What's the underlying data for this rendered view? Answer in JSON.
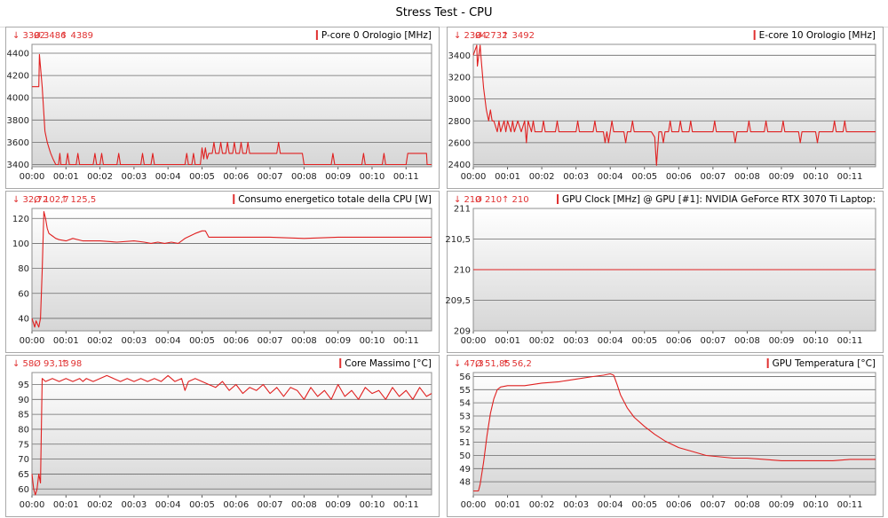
{
  "window": {
    "title": "Stress Test - CPU"
  },
  "theme": {
    "line_color": "#e02020",
    "stat_color": "#e03030"
  },
  "chart_data": [
    {
      "type": "line",
      "title": "P-core 0 Orologio [MHz]",
      "stats": {
        "min": "↓ 3392",
        "avg": "Ø 3486",
        "max": "↑ 4389"
      },
      "ylim": [
        3380,
        4480
      ],
      "yticks": [
        3400,
        3600,
        3800,
        4000,
        4200,
        4400
      ],
      "ytick_labels": [
        "3400",
        "3600",
        "3800",
        "4000",
        "4200",
        "4400"
      ],
      "xlim": [
        0,
        11.75
      ],
      "xticks": [
        0,
        1,
        2,
        3,
        4,
        5,
        6,
        7,
        8,
        9,
        10,
        11
      ],
      "xtick_labels": [
        "00:00",
        "00:01",
        "00:02",
        "00:03",
        "00:04",
        "00:05",
        "00:06",
        "00:07",
        "00:08",
        "00:09",
        "00:10",
        "00:11"
      ],
      "grid": true,
      "x": [
        0.0,
        0.2,
        0.22,
        0.3,
        0.38,
        0.45,
        0.5,
        0.55,
        0.62,
        0.7,
        0.78,
        0.82,
        0.85,
        1.0,
        1.05,
        1.1,
        1.3,
        1.35,
        1.4,
        1.8,
        1.85,
        1.9,
        2.0,
        2.05,
        2.1,
        2.5,
        2.55,
        2.6,
        3.2,
        3.25,
        3.3,
        3.5,
        3.55,
        3.6,
        4.5,
        4.55,
        4.6,
        4.7,
        4.75,
        4.8,
        4.95,
        5.0,
        5.05,
        5.1,
        5.15,
        5.2,
        5.3,
        5.35,
        5.4,
        5.5,
        5.55,
        5.6,
        5.7,
        5.75,
        5.8,
        5.9,
        5.95,
        6.0,
        6.1,
        6.15,
        6.2,
        6.3,
        6.35,
        6.4,
        6.5,
        6.55,
        7.2,
        7.25,
        7.3,
        7.9,
        7.95,
        8.0,
        8.8,
        8.85,
        8.9,
        9.7,
        9.75,
        9.8,
        10.3,
        10.35,
        10.4,
        11.0,
        11.05,
        11.1,
        11.6,
        11.62,
        11.75
      ],
      "y": [
        4100,
        4100,
        4389,
        4100,
        3700,
        3600,
        3550,
        3500,
        3450,
        3400,
        3400,
        3500,
        3400,
        3400,
        3500,
        3400,
        3400,
        3500,
        3400,
        3400,
        3500,
        3400,
        3400,
        3500,
        3400,
        3400,
        3500,
        3400,
        3400,
        3500,
        3400,
        3400,
        3500,
        3400,
        3400,
        3500,
        3400,
        3400,
        3500,
        3400,
        3400,
        3550,
        3450,
        3550,
        3450,
        3500,
        3500,
        3600,
        3500,
        3500,
        3600,
        3500,
        3500,
        3600,
        3500,
        3500,
        3600,
        3500,
        3500,
        3600,
        3500,
        3500,
        3600,
        3500,
        3500,
        3500,
        3500,
        3600,
        3500,
        3500,
        3500,
        3400,
        3400,
        3500,
        3400,
        3400,
        3500,
        3400,
        3400,
        3500,
        3400,
        3400,
        3500,
        3500,
        3500,
        3400,
        3400
      ]
    },
    {
      "type": "line",
      "title": "E-core 10 Orologio [MHz]",
      "stats": {
        "min": "↓ 2394",
        "avg": "Ø 2732",
        "max": "↑ 3492"
      },
      "ylim": [
        2380,
        3500
      ],
      "yticks": [
        2400,
        2600,
        2800,
        3000,
        3200,
        3400
      ],
      "ytick_labels": [
        "2400",
        "2600",
        "2800",
        "3000",
        "3200",
        "3400"
      ],
      "xlim": [
        0,
        11.75
      ],
      "xticks": [
        0,
        1,
        2,
        3,
        4,
        5,
        6,
        7,
        8,
        9,
        10,
        11
      ],
      "xtick_labels": [
        "00:00",
        "00:01",
        "00:02",
        "00:03",
        "00:04",
        "00:05",
        "00:06",
        "00:07",
        "00:08",
        "00:09",
        "00:10",
        "00:11"
      ],
      "grid": true,
      "x": [
        0.0,
        0.1,
        0.12,
        0.2,
        0.22,
        0.3,
        0.38,
        0.45,
        0.5,
        0.55,
        0.6,
        0.7,
        0.75,
        0.8,
        0.9,
        0.95,
        1.0,
        1.1,
        1.15,
        1.2,
        1.3,
        1.4,
        1.5,
        1.55,
        1.6,
        1.7,
        1.75,
        1.8,
        2.0,
        2.05,
        2.1,
        2.4,
        2.45,
        2.5,
        3.0,
        3.05,
        3.1,
        3.5,
        3.55,
        3.6,
        3.8,
        3.85,
        3.9,
        3.95,
        4.0,
        4.05,
        4.1,
        4.4,
        4.45,
        4.5,
        4.6,
        4.65,
        4.7,
        5.2,
        5.3,
        5.35,
        5.42,
        5.5,
        5.55,
        5.6,
        5.7,
        5.75,
        5.8,
        6.0,
        6.05,
        6.1,
        6.3,
        6.35,
        6.4,
        7.0,
        7.05,
        7.1,
        7.6,
        7.65,
        7.7,
        8.0,
        8.05,
        8.1,
        8.5,
        8.55,
        8.6,
        9.0,
        9.05,
        9.1,
        9.5,
        9.55,
        9.6,
        10.0,
        10.05,
        10.1,
        10.5,
        10.55,
        10.6,
        10.8,
        10.85,
        10.9,
        11.75
      ],
      "y": [
        3400,
        3492,
        3300,
        3492,
        3400,
        3100,
        2900,
        2800,
        2900,
        2800,
        2800,
        2700,
        2800,
        2700,
        2800,
        2700,
        2800,
        2700,
        2800,
        2700,
        2800,
        2700,
        2800,
        2600,
        2800,
        2700,
        2800,
        2700,
        2700,
        2800,
        2700,
        2700,
        2800,
        2700,
        2700,
        2800,
        2700,
        2700,
        2800,
        2700,
        2700,
        2600,
        2700,
        2600,
        2700,
        2800,
        2700,
        2700,
        2600,
        2700,
        2700,
        2800,
        2700,
        2700,
        2650,
        2394,
        2700,
        2700,
        2600,
        2700,
        2700,
        2800,
        2700,
        2700,
        2800,
        2700,
        2700,
        2800,
        2700,
        2700,
        2800,
        2700,
        2700,
        2600,
        2700,
        2700,
        2800,
        2700,
        2700,
        2800,
        2700,
        2700,
        2800,
        2700,
        2700,
        2600,
        2700,
        2700,
        2600,
        2700,
        2700,
        2800,
        2700,
        2700,
        2800,
        2700,
        2700
      ]
    },
    {
      "type": "line",
      "title": "Consumo energetico totale della CPU [W]",
      "stats": {
        "min": "↓ 32,72",
        "avg": "Ø 102,7",
        "max": "↑ 125,5"
      },
      "ylim": [
        30,
        128
      ],
      "yticks": [
        40,
        60,
        80,
        100,
        120
      ],
      "ytick_labels": [
        "40",
        "60",
        "80",
        "100",
        "120"
      ],
      "xlim": [
        0,
        11.75
      ],
      "xticks": [
        0,
        1,
        2,
        3,
        4,
        5,
        6,
        7,
        8,
        9,
        10,
        11
      ],
      "xtick_labels": [
        "00:00",
        "00:01",
        "00:02",
        "00:03",
        "00:04",
        "00:05",
        "00:06",
        "00:07",
        "00:08",
        "00:09",
        "00:10",
        "00:11"
      ],
      "grid": true,
      "x": [
        0.0,
        0.08,
        0.12,
        0.2,
        0.25,
        0.3,
        0.35,
        0.4,
        0.45,
        0.5,
        0.6,
        0.7,
        0.8,
        1.0,
        1.2,
        1.5,
        2.0,
        2.5,
        3.0,
        3.3,
        3.5,
        3.7,
        3.9,
        4.1,
        4.3,
        4.5,
        4.8,
        5.0,
        5.1,
        5.2,
        5.3,
        6.0,
        7.0,
        8.0,
        9.0,
        10.0,
        11.0,
        11.75
      ],
      "y": [
        40,
        33,
        38,
        33,
        40,
        78,
        125.5,
        120,
        112,
        108,
        106,
        104,
        103,
        102,
        104,
        102,
        102,
        101,
        102,
        101,
        100,
        101,
        100,
        101,
        100,
        104,
        108,
        110,
        110,
        105,
        105,
        105,
        105,
        104,
        105,
        105,
        105,
        105
      ]
    },
    {
      "type": "line",
      "title": "GPU Clock [MHz] @ GPU [#1]: NVIDIA GeForce RTX 3070 Ti Laptop:",
      "stats": {
        "min": "↓ 210",
        "avg": "Ø 210",
        "max": "↑ 210"
      },
      "ylim": [
        209,
        211
      ],
      "yticks": [
        209,
        209.5,
        210,
        210.5,
        211
      ],
      "ytick_labels": [
        "209",
        "209,5",
        "210",
        "210,5",
        "211"
      ],
      "xlim": [
        0,
        11.75
      ],
      "xticks": [
        0,
        1,
        2,
        3,
        4,
        5,
        6,
        7,
        8,
        9,
        10,
        11
      ],
      "xtick_labels": [
        "00:00",
        "00:01",
        "00:02",
        "00:03",
        "00:04",
        "00:05",
        "00:06",
        "00:07",
        "00:08",
        "00:09",
        "00:10",
        "00:11"
      ],
      "grid": true,
      "x": [
        0.0,
        11.75
      ],
      "y": [
        210,
        210
      ]
    },
    {
      "type": "line",
      "title": "Core Massimo [°C]",
      "stats": {
        "min": "↓ 58",
        "avg": "Ø 93,13",
        "max": "↑ 98"
      },
      "ylim": [
        58,
        99
      ],
      "yticks": [
        60,
        65,
        70,
        75,
        80,
        85,
        90,
        95
      ],
      "ytick_labels": [
        "60",
        "65",
        "70",
        "75",
        "80",
        "85",
        "90",
        "95"
      ],
      "xlim": [
        0,
        11.75
      ],
      "xticks": [
        0,
        1,
        2,
        3,
        4,
        5,
        6,
        7,
        8,
        9,
        10,
        11
      ],
      "xtick_labels": [
        "00:00",
        "00:01",
        "00:02",
        "00:03",
        "00:04",
        "00:05",
        "00:06",
        "00:07",
        "00:08",
        "00:09",
        "00:10",
        "00:11"
      ],
      "grid": true,
      "x": [
        0.0,
        0.05,
        0.1,
        0.15,
        0.2,
        0.25,
        0.3,
        0.4,
        0.6,
        0.8,
        1.0,
        1.2,
        1.4,
        1.5,
        1.6,
        1.8,
        2.0,
        2.2,
        2.4,
        2.6,
        2.8,
        3.0,
        3.2,
        3.4,
        3.6,
        3.8,
        4.0,
        4.2,
        4.4,
        4.5,
        4.6,
        4.8,
        5.0,
        5.2,
        5.4,
        5.6,
        5.8,
        6.0,
        6.2,
        6.4,
        6.6,
        6.8,
        7.0,
        7.2,
        7.4,
        7.6,
        7.8,
        8.0,
        8.2,
        8.4,
        8.6,
        8.8,
        9.0,
        9.2,
        9.4,
        9.6,
        9.8,
        10.0,
        10.2,
        10.4,
        10.6,
        10.8,
        11.0,
        11.2,
        11.4,
        11.6,
        11.75
      ],
      "y": [
        65,
        60,
        58,
        60,
        65,
        62,
        97,
        96,
        97,
        96,
        97,
        96,
        97,
        96,
        97,
        96,
        97,
        98,
        97,
        96,
        97,
        96,
        97,
        96,
        97,
        96,
        98,
        96,
        97,
        93,
        96,
        97,
        96,
        95,
        94,
        96,
        93,
        95,
        92,
        94,
        93,
        95,
        92,
        94,
        91,
        94,
        93,
        90,
        94,
        91,
        93,
        90,
        95,
        91,
        93,
        90,
        94,
        92,
        93,
        90,
        94,
        91,
        93,
        90,
        94,
        91,
        92
      ]
    },
    {
      "type": "line",
      "title": "GPU Temperatura [°C]",
      "stats": {
        "min": "↓ 47,3",
        "avg": "Ø 51,85",
        "max": "↑ 56,2"
      },
      "ylim": [
        47,
        56.3
      ],
      "yticks": [
        48,
        49,
        50,
        51,
        52,
        53,
        54,
        55,
        56
      ],
      "ytick_labels": [
        "48",
        "49",
        "50",
        "51",
        "52",
        "53",
        "54",
        "55",
        "56"
      ],
      "xlim": [
        0,
        11.75
      ],
      "xticks": [
        0,
        1,
        2,
        3,
        4,
        5,
        6,
        7,
        8,
        9,
        10,
        11
      ],
      "xtick_labels": [
        "00:00",
        "00:01",
        "00:02",
        "00:03",
        "00:04",
        "00:05",
        "00:06",
        "00:07",
        "00:08",
        "00:09",
        "00:10",
        "00:11"
      ],
      "grid": true,
      "x": [
        0.0,
        0.15,
        0.2,
        0.3,
        0.4,
        0.5,
        0.6,
        0.7,
        0.8,
        1.0,
        1.5,
        2.0,
        2.5,
        3.0,
        3.5,
        3.8,
        4.0,
        4.1,
        4.2,
        4.3,
        4.5,
        4.7,
        5.0,
        5.3,
        5.6,
        6.0,
        6.4,
        6.8,
        7.2,
        7.6,
        8.0,
        8.5,
        9.0,
        9.5,
        10.0,
        10.5,
        11.0,
        11.5,
        11.75
      ],
      "y": [
        47.3,
        47.3,
        47.8,
        49.5,
        51.5,
        53.2,
        54.3,
        55.0,
        55.2,
        55.3,
        55.3,
        55.5,
        55.6,
        55.8,
        56.0,
        56.1,
        56.2,
        56.1,
        55.4,
        54.6,
        53.6,
        52.9,
        52.2,
        51.6,
        51.1,
        50.6,
        50.3,
        50.0,
        49.9,
        49.8,
        49.8,
        49.7,
        49.6,
        49.6,
        49.6,
        49.6,
        49.7,
        49.7,
        49.7
      ]
    }
  ]
}
